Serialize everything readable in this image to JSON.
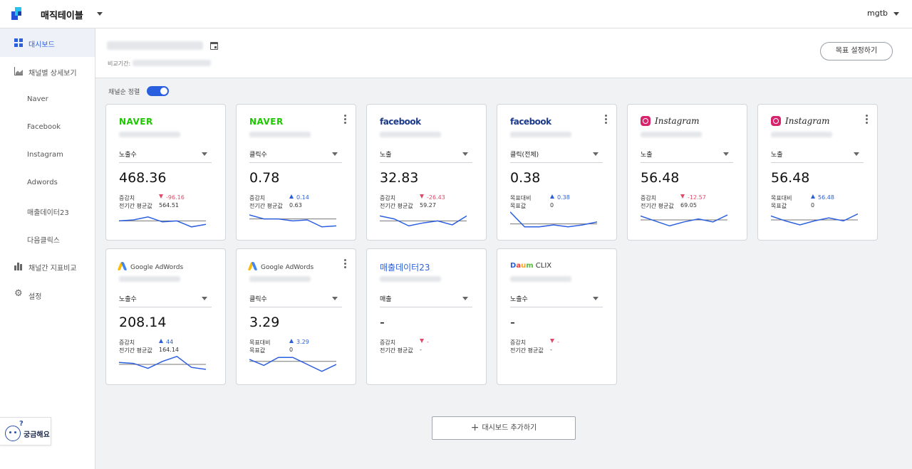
{
  "app": {
    "title": "매직테이블",
    "user": "mgtb"
  },
  "sidebar": {
    "items": [
      {
        "label": "대시보드",
        "icon": "dashboard-grid-icon"
      },
      {
        "label": "채널별 상세보기",
        "icon": "area-chart-icon"
      },
      {
        "label": "Naver"
      },
      {
        "label": "Facebook"
      },
      {
        "label": "Instagram"
      },
      {
        "label": "Adwords"
      },
      {
        "label": "매출데이터23"
      },
      {
        "label": "다음클릭스"
      },
      {
        "label": "채널간 지표비교",
        "icon": "bar-chart-icon"
      },
      {
        "label": "설정",
        "icon": "gear-icon"
      }
    ]
  },
  "filter": {
    "compare_label": "비교기간:",
    "goal_button": "목표 설정하기"
  },
  "sort": {
    "label": "채널순 정렬",
    "enabled": true
  },
  "help": {
    "label": "궁금해요"
  },
  "cards": [
    {
      "brand": "NAVER",
      "metric": "노출수",
      "value": "468.36",
      "row1_label": "증감치",
      "row1_value": "-96.16",
      "row1_dir": "down",
      "row2_label": "전기간 평균값",
      "row2_value": "564.51",
      "spark": [
        0.55,
        0.5,
        0.35,
        0.6,
        0.55,
        0.85,
        0.72
      ],
      "baseline": 0.55
    },
    {
      "brand": "NAVER",
      "metric": "클릭수",
      "value": "0.78",
      "row1_label": "증감치",
      "row1_value": "0.14",
      "row1_dir": "up",
      "row2_label": "전기간 평균값",
      "row2_value": "0.63",
      "spark": [
        0.25,
        0.45,
        0.45,
        0.55,
        0.5,
        0.85,
        0.8
      ],
      "baseline": 0.45
    },
    {
      "brand": "facebook",
      "metric": "노출",
      "value": "32.83",
      "row1_label": "증감치",
      "row1_value": "-26.43",
      "row1_dir": "down",
      "row2_label": "전기간 평균값",
      "row2_value": "59.27",
      "spark": [
        0.3,
        0.45,
        0.8,
        0.65,
        0.55,
        0.75,
        0.3
      ],
      "baseline": 0.55
    },
    {
      "brand": "facebook",
      "metric": "클릭(전체)",
      "value": "0.38",
      "row1_label": "목표대비",
      "row1_value": "0.38",
      "row1_dir": "up",
      "row2_label": "목표값",
      "row2_value": "0",
      "spark": [
        0.1,
        0.85,
        0.85,
        0.75,
        0.85,
        0.75,
        0.6
      ],
      "baseline": 0.7
    },
    {
      "brand": "Instagram",
      "metric": "노출",
      "value": "56.48",
      "row1_label": "증감치",
      "row1_value": "-12.57",
      "row1_dir": "down",
      "row2_label": "전기간 평균값",
      "row2_value": "69.05",
      "spark": [
        0.3,
        0.55,
        0.8,
        0.6,
        0.45,
        0.6,
        0.25
      ],
      "baseline": 0.5
    },
    {
      "brand": "Instagram",
      "metric": "노출",
      "value": "56.48",
      "row1_label": "목표대비",
      "row1_value": "56.48",
      "row1_dir": "up",
      "row2_label": "목표값",
      "row2_value": "0",
      "spark": [
        0.3,
        0.55,
        0.75,
        0.55,
        0.4,
        0.55,
        0.2
      ],
      "baseline": 0.5
    },
    {
      "brand": "Google AdWords",
      "metric": "노출수",
      "value": "208.14",
      "row1_label": "증감치",
      "row1_value": "44",
      "row1_dir": "up",
      "row2_label": "전기간 평균값",
      "row2_value": "164.14",
      "spark": [
        0.4,
        0.45,
        0.7,
        0.35,
        0.1,
        0.65,
        0.75
      ],
      "baseline": 0.5
    },
    {
      "brand": "Google AdWords",
      "metric": "클릭수",
      "value": "3.29",
      "row1_label": "목표대비",
      "row1_value": "3.29",
      "row1_dir": "up",
      "row2_label": "목표값",
      "row2_value": "0",
      "spark": [
        0.25,
        0.55,
        0.15,
        0.15,
        0.5,
        0.85,
        0.5
      ],
      "baseline": 0.35
    },
    {
      "brand": "매출데이터23",
      "metric": "매출",
      "value": "-",
      "row1_label": "증감치",
      "row1_value": "-",
      "row1_dir": "down",
      "row2_label": "전기간 평균값",
      "row2_value": "-",
      "spark": null,
      "baseline": null
    },
    {
      "brand": "CLIX",
      "metric": "노출수",
      "value": "-",
      "row1_label": "증감치",
      "row1_value": "-",
      "row1_dir": "down",
      "row2_label": "전기간 평균값",
      "row2_value": "-",
      "spark": null,
      "baseline": null
    }
  ],
  "add_dashboard": "대시보드 추가하기",
  "colors": {
    "accent": "#2c5fe0",
    "up": "#2a5fd8",
    "down": "#e04a68",
    "naver": "#1ec800",
    "facebook": "#1d3a8a"
  }
}
